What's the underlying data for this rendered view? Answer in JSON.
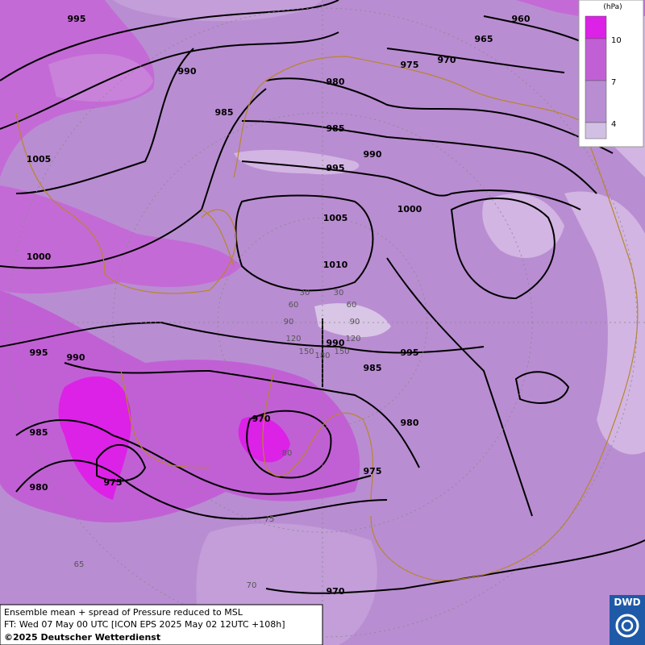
{
  "legend": {
    "unit": "(hPa)",
    "ticks": [
      "10",
      "7",
      "4"
    ]
  },
  "isobar_labels": [
    "995",
    "990",
    "985",
    "1005",
    "1000",
    "995",
    "990",
    "985",
    "980",
    "975",
    "970",
    "975",
    "980",
    "985",
    "995",
    "990",
    "1010",
    "1005",
    "995",
    "990",
    "985",
    "980",
    "975",
    "970",
    "965",
    "960",
    "1000",
    "970"
  ],
  "grid_labels": [
    "30",
    "30",
    "60",
    "60",
    "90",
    "90",
    "120",
    "120",
    "150",
    "150",
    "180",
    "80",
    "75",
    "70",
    "65"
  ],
  "footer": {
    "line1": "Ensemble mean + spread of Pressure reduced to MSL",
    "line2": "FT: Wed 07 May 00 UTC [ICON EPS 2025 May 02 12UTC +108h]",
    "line3": "©2025 Deutscher Wetterdienst"
  },
  "logo": "DWD"
}
